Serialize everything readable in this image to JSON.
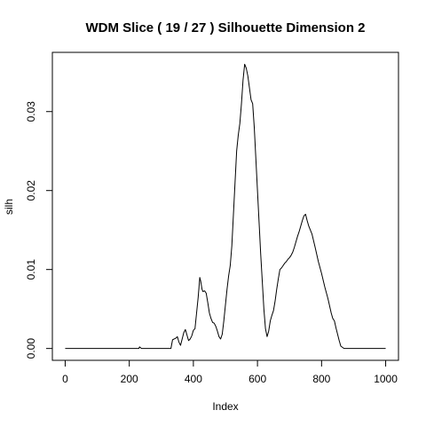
{
  "chart_data": {
    "type": "line",
    "title": "WDM Slice ( 19 / 27 )  Silhouette Dimension 2",
    "xlabel": "Index",
    "ylabel": "silh",
    "xlim": [
      -40,
      1040
    ],
    "ylim": [
      -0.0015,
      0.0375
    ],
    "xticks": [
      0,
      200,
      400,
      600,
      800,
      1000
    ],
    "xtick_labels": [
      "0",
      "200",
      "400",
      "600",
      "800",
      "1000"
    ],
    "yticks": [
      0.0,
      0.01,
      0.02,
      0.03
    ],
    "ytick_labels": [
      "0.00",
      "0.01",
      "0.02",
      "0.03"
    ],
    "grid": false,
    "legend": "none",
    "line_color": "#000000",
    "series": [
      {
        "x": [
          0,
          230,
          232,
          235,
          238,
          280,
          300,
          320,
          330,
          335,
          340,
          345,
          350,
          355,
          360,
          370,
          375,
          380,
          385,
          390,
          395,
          400,
          405,
          410,
          415,
          420,
          423,
          427,
          430,
          435,
          440,
          445,
          450,
          455,
          460,
          465,
          470,
          475,
          480,
          485,
          490,
          495,
          500,
          505,
          510,
          515,
          520,
          525,
          530,
          535,
          540,
          545,
          550,
          555,
          560,
          565,
          570,
          575,
          580,
          585,
          590,
          595,
          600,
          605,
          610,
          615,
          620,
          625,
          630,
          635,
          640,
          645,
          650,
          655,
          660,
          665,
          670,
          675,
          680,
          685,
          690,
          695,
          700,
          705,
          710,
          715,
          720,
          725,
          730,
          735,
          740,
          745,
          750,
          755,
          760,
          770,
          780,
          790,
          800,
          810,
          820,
          830,
          835,
          840,
          845,
          850,
          855,
          860,
          870,
          900,
          1000
        ],
        "y": [
          0.0,
          0.0,
          0.0002,
          0.0001,
          0.0,
          0.0,
          0.0,
          0.0,
          0.0,
          0.0011,
          0.0012,
          0.0013,
          0.0015,
          0.0008,
          0.0004,
          0.002,
          0.0024,
          0.0017,
          0.001,
          0.0012,
          0.0016,
          0.0023,
          0.0025,
          0.0045,
          0.0065,
          0.009,
          0.0085,
          0.0075,
          0.0072,
          0.0073,
          0.007,
          0.0058,
          0.0045,
          0.0038,
          0.0033,
          0.0032,
          0.0028,
          0.0022,
          0.0015,
          0.0012,
          0.0018,
          0.0035,
          0.0055,
          0.0075,
          0.0092,
          0.0105,
          0.013,
          0.017,
          0.021,
          0.025,
          0.027,
          0.0285,
          0.031,
          0.034,
          0.036,
          0.0355,
          0.0345,
          0.033,
          0.0315,
          0.031,
          0.028,
          0.024,
          0.02,
          0.016,
          0.012,
          0.0085,
          0.005,
          0.0025,
          0.0015,
          0.0022,
          0.0035,
          0.0042,
          0.0048,
          0.006,
          0.0075,
          0.0088,
          0.01,
          0.0102,
          0.0105,
          0.0108,
          0.011,
          0.0113,
          0.0115,
          0.0118,
          0.0122,
          0.0128,
          0.0135,
          0.0142,
          0.0148,
          0.0155,
          0.0162,
          0.0168,
          0.017,
          0.0162,
          0.0155,
          0.0145,
          0.0128,
          0.011,
          0.0095,
          0.0078,
          0.0063,
          0.0045,
          0.0038,
          0.0035,
          0.0026,
          0.0018,
          0.001,
          0.0003,
          0.0,
          0.0,
          0.0
        ]
      }
    ]
  }
}
